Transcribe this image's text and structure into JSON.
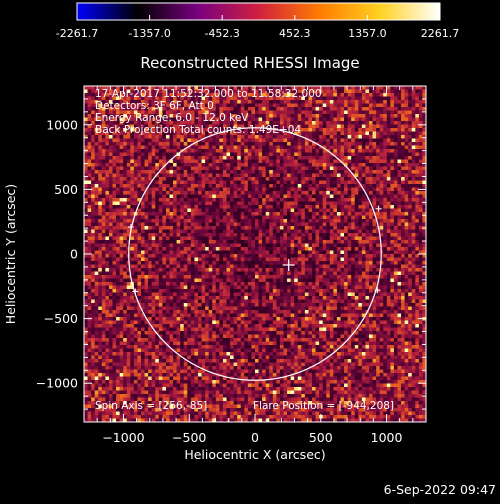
{
  "colorbar": {
    "ticks": [
      "-2261.7",
      "-1357.0",
      "-452.3",
      "452.3",
      "1357.0",
      "2261.7"
    ],
    "range": [
      -2261.7,
      2261.7
    ],
    "colors": [
      "#0000ff",
      "#000000",
      "#7a0080",
      "#d02040",
      "#ff7a00",
      "#ffd020",
      "#ffffff"
    ]
  },
  "chart_data": {
    "type": "heatmap",
    "title": "Reconstructed RHESSI Image",
    "xlabel": "Heliocentric X (arcsec)",
    "ylabel": "Heliocentric Y (arcsec)",
    "xlim": [
      -1300,
      1300
    ],
    "ylim": [
      -1300,
      1300
    ],
    "x_ticks": [
      -1000,
      -500,
      0,
      500,
      1000
    ],
    "y_ticks": [
      -1000,
      -500,
      0,
      500,
      1000
    ],
    "annotations": {
      "time_range": "17-Apr-2017 11:52:32.000 to 11:58:32.000",
      "detectors": "Detectors: 3F 6F, Att 0",
      "energy": "Energy Range: 6.0 - 12.0 keV",
      "method": "Back Projection     Total counts: 1.49E+04",
      "spin_axis": "Spin Axis = [256,-85]",
      "flare_position": "Flare Position = [-944,208]"
    },
    "solar_disk": {
      "center": [
        0,
        0
      ],
      "radius_arcsec": 960
    },
    "spin_axis_marker": [
      256,
      -85
    ],
    "limb_markers": [
      [
        -944,
        208
      ],
      [
        -910,
        -290
      ],
      [
        930,
        -280
      ],
      [
        940,
        350
      ]
    ]
  },
  "timestamp": "6-Sep-2022 09:47"
}
